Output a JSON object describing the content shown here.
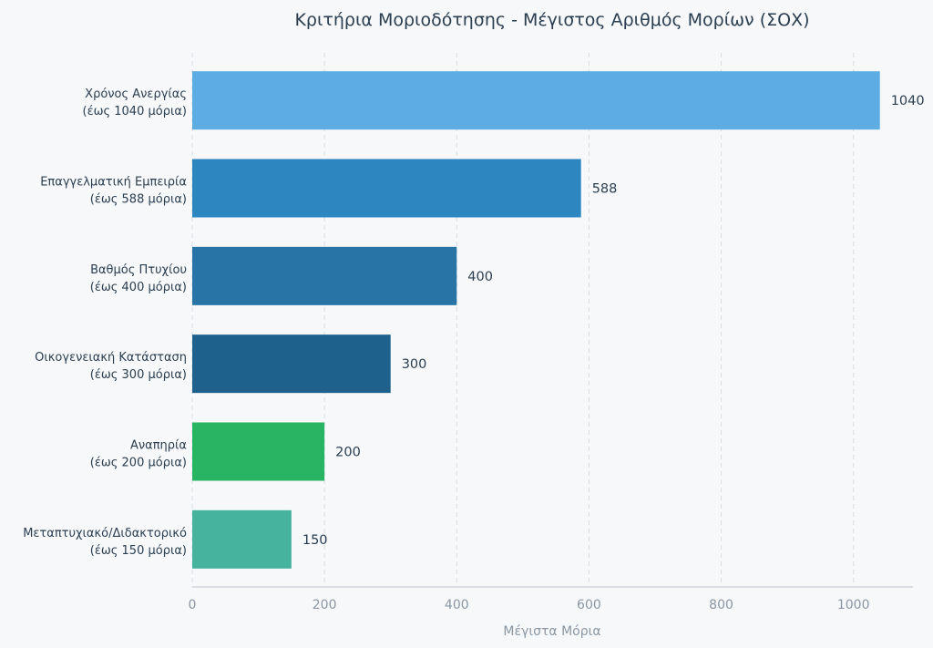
{
  "chart_data": {
    "type": "bar",
    "orientation": "horizontal",
    "title": "Κριτήρια Μοριοδότησης - Μέγιστος Αριθμός Μορίων (ΣΟΧ)",
    "xlabel": "Μέγιστα Μόρια",
    "ylabel": "",
    "xlim": [
      0,
      1090
    ],
    "xticks": [
      0,
      200,
      400,
      600,
      800,
      1000
    ],
    "grid": true,
    "legend": "none",
    "categories": [
      [
        "Χρόνος Ανεργίας",
        "(έως 1040 μόρια)"
      ],
      [
        "Επαγγελματική Εμπειρία",
        "(έως 588 μόρια)"
      ],
      [
        "Βαθμός Πτυχίου",
        "(έως 400 μόρια)"
      ],
      [
        "Οικογενειακή Κατάσταση",
        "(έως 300 μόρια)"
      ],
      [
        "Αναπηρία",
        "(έως 200 μόρια)"
      ],
      [
        "Μεταπτυχιακό/Διδακτορικό",
        "(έως 150 μόρια)"
      ]
    ],
    "values": [
      1040,
      588,
      400,
      300,
      200,
      150
    ],
    "colors": [
      "#5dade2",
      "#2e86c1",
      "#2874a6",
      "#1f618d",
      "#28b463",
      "#45b39d"
    ]
  }
}
